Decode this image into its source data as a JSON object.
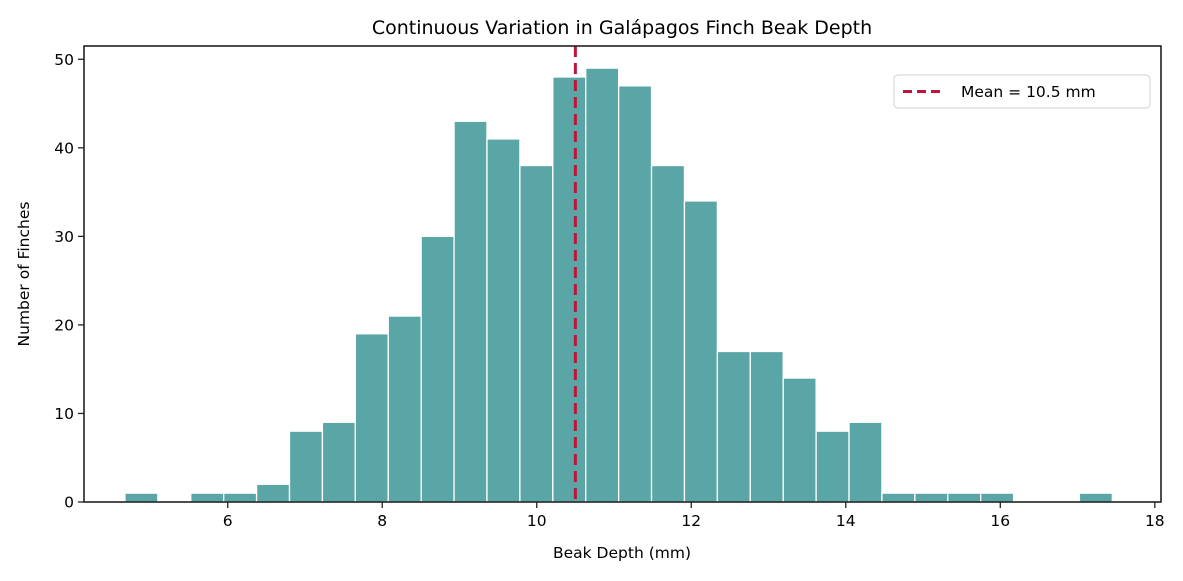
{
  "chart_data": {
    "type": "bar",
    "subtype": "histogram",
    "title": "Continuous Variation in Galápagos Finch Beak Depth",
    "xlabel": "Beak Depth (mm)",
    "ylabel": "Number of Finches",
    "xlim": [
      4.14,
      18.08
    ],
    "ylim": [
      0,
      51.5
    ],
    "xticks": [
      6,
      8,
      10,
      12,
      14,
      16,
      18
    ],
    "yticks": [
      0,
      10,
      20,
      30,
      40,
      50
    ],
    "bin_start": 4.67,
    "bin_width": 0.426,
    "counts": [
      1,
      0,
      1,
      1,
      2,
      8,
      9,
      19,
      21,
      30,
      43,
      41,
      38,
      48,
      49,
      47,
      38,
      34,
      17,
      17,
      14,
      8,
      9,
      1,
      1,
      1,
      1,
      0,
      0,
      1
    ],
    "bar_color": "#5aa6a6",
    "bar_edge_color": "#ffffff",
    "mean_line": {
      "x": 10.5,
      "color": "#c0143c",
      "style": "dashed",
      "label": "Mean = 10.5 mm"
    },
    "legend": {
      "position": "upper right",
      "entries": [
        "Mean = 10.5 mm"
      ]
    },
    "grid": false
  }
}
